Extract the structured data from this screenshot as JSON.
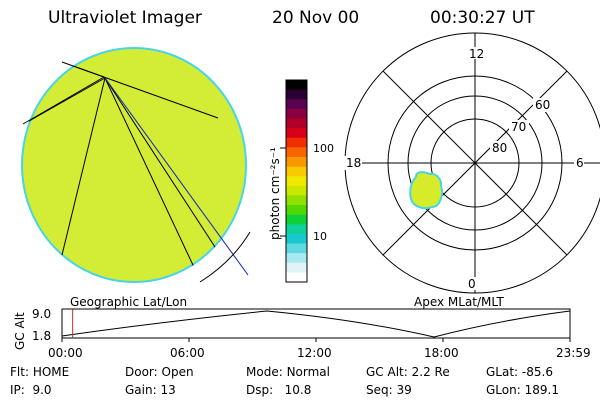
{
  "header": {
    "title": "Ultraviolet Imager",
    "date": "20 Nov 00",
    "time": "00:30:27 UT"
  },
  "colorbar": {
    "unit_label": "photon cm⁻²s⁻¹",
    "tick_100": "100",
    "tick_10": "10",
    "colors": [
      "#000000",
      "#2a0030",
      "#5a0050",
      "#8a0040",
      "#b00028",
      "#d80018",
      "#f03000",
      "#f86400",
      "#f89800",
      "#f8c800",
      "#f0e800",
      "#c8e800",
      "#90e000",
      "#50d800",
      "#10d038",
      "#10d098",
      "#18c8d0",
      "#60d8e0",
      "#a8e8f0",
      "#e0f4f8",
      "#ffffff"
    ]
  },
  "left_panel": {
    "caption": "Geographic Lat/Lon",
    "fill_color": "#d6ec2a",
    "edge_color": "#44d6e8"
  },
  "right_panel": {
    "caption": "Apex MLat/MLT",
    "mlt_12": "12",
    "mlt_18": "18",
    "mlt_6": "6",
    "mlt_0": "0",
    "lat_60": "60",
    "lat_70": "70",
    "lat_80": "80"
  },
  "timeline": {
    "ylabel": "GC Alt",
    "y_top": "9.0",
    "y_bottom": "1.8",
    "ticks": [
      "00:00",
      "06:00",
      "12:00",
      "18:00",
      "23:59"
    ],
    "marker_color": "#c03030",
    "current_fraction": 0.021
  },
  "info": {
    "flt_label": "Flt:",
    "flt_value": "HOME",
    "ip_label": "IP:",
    "ip_value": "9.0",
    "door_label": "Door:",
    "door_value": "Open",
    "gain_label": "Gain:",
    "gain_value": "13",
    "mode_label": "Mode:",
    "mode_value": "Normal",
    "dsp_label": "Dsp:",
    "dsp_value": "10.8",
    "gcalt_label": "GC Alt:",
    "gcalt_value": "2.2 Re",
    "seq_label": "Seq:",
    "seq_value": "39",
    "glat_label": "GLat:",
    "glat_value": "-85.6",
    "glon_label": "GLon:",
    "glon_value": "189.1"
  }
}
